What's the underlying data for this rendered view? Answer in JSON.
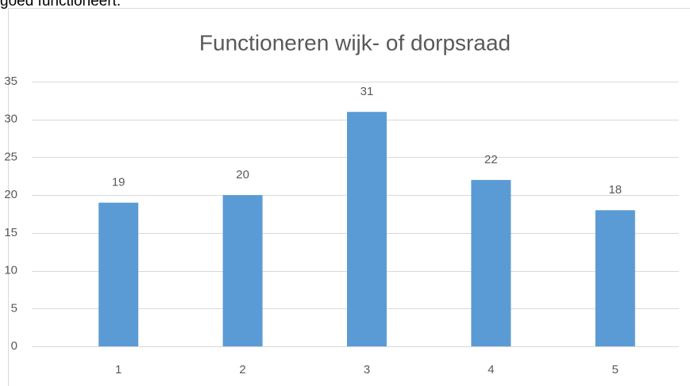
{
  "page_text": "goed functioneert.",
  "chart_data": {
    "type": "bar",
    "title": "Functioneren wijk- of dorpsraad",
    "categories": [
      "1",
      "2",
      "3",
      "4",
      "5"
    ],
    "values": [
      19,
      20,
      31,
      22,
      18
    ],
    "color": "#5b9bd5",
    "ylim": [
      0,
      35
    ],
    "yticks": [
      0,
      5,
      10,
      15,
      20,
      25,
      30,
      35
    ],
    "grid": true,
    "data_labels": true
  }
}
